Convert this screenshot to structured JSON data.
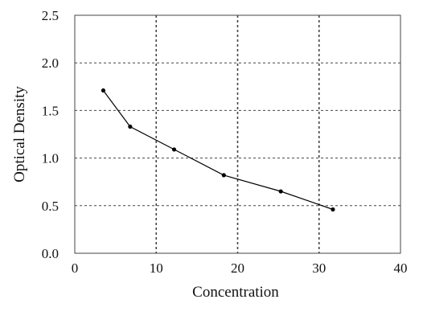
{
  "chart_data": {
    "type": "line",
    "title": "",
    "xlabel": "Concentration",
    "ylabel": "Optical Density",
    "xlim": [
      0,
      40
    ],
    "ylim": [
      0,
      2.5
    ],
    "x_ticks": [
      "0",
      "10",
      "20",
      "30",
      "40"
    ],
    "y_ticks": [
      "0.0",
      "0.5",
      "1.0",
      "1.5",
      "2.0",
      "2.5"
    ],
    "grid": "dashed",
    "series": [
      {
        "x": [
          3.5,
          6.8,
          12.2,
          18.3,
          25.3,
          31.7
        ],
        "y": [
          1.71,
          1.33,
          1.09,
          0.82,
          0.65,
          0.46
        ],
        "color": "#000000"
      }
    ]
  }
}
